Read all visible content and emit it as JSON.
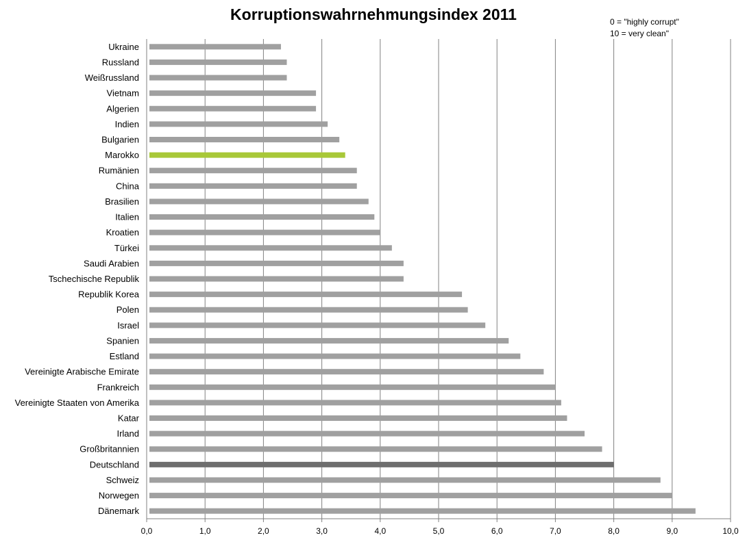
{
  "chart_data": {
    "type": "bar",
    "orientation": "horizontal",
    "title": "Korruptionswahrnehmungsindex 2011",
    "annotation": [
      "0 = \"highly corrupt\"",
      "10 = very clean\""
    ],
    "categories": [
      "Ukraine",
      "Russland",
      "Weißrussland",
      "Vietnam",
      "Algerien",
      "Indien",
      "Bulgarien",
      "Marokko",
      "Rumänien",
      "China",
      "Brasilien",
      "Italien",
      "Kroatien",
      "Türkei",
      "Saudi Arabien",
      "Tschechische Republik",
      "Republik Korea",
      "Polen",
      "Israel",
      "Spanien",
      "Estland",
      "Vereinigte Arabische Emirate",
      "Frankreich",
      "Vereinigte Staaten von Amerika",
      "Katar",
      "Irland",
      "Großbritannien",
      "Deutschland",
      "Schweiz",
      "Norwegen",
      "Dänemark"
    ],
    "values": [
      2.3,
      2.4,
      2.4,
      2.9,
      2.9,
      3.1,
      3.3,
      3.4,
      3.6,
      3.6,
      3.8,
      3.9,
      4.0,
      4.2,
      4.4,
      4.4,
      5.4,
      5.5,
      5.8,
      6.2,
      6.4,
      6.8,
      7.0,
      7.1,
      7.2,
      7.5,
      7.8,
      8.0,
      8.8,
      9.0,
      9.4
    ],
    "xlim": [
      0,
      10
    ],
    "xticks": [
      "0,0",
      "1,0",
      "2,0",
      "3,0",
      "4,0",
      "5,0",
      "6,0",
      "7,0",
      "8,0",
      "9,0",
      "10,0"
    ],
    "grid": true,
    "colors": {
      "default": "#a0a0a0",
      "highlight_marokko": "#a8c838",
      "highlight_deutschland": "#6e6e6e",
      "grid": "#808080"
    },
    "highlights": {
      "Marokko": "highlight_marokko",
      "Deutschland": "highlight_deutschland"
    }
  }
}
